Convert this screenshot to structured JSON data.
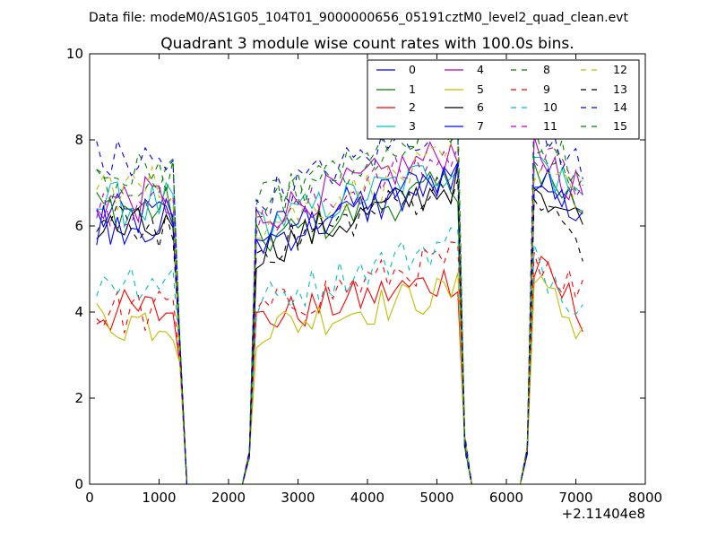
{
  "suptitle": "Data file: modeM0/AS1G05_104T01_9000000656_05191cztM0_level2_quad_clean.evt",
  "chart_data": {
    "type": "line",
    "title": "Quadrant 3 module wise count rates with 100.0s bins.",
    "xlabel": "",
    "ylabel": "",
    "xlim": [
      0,
      8000
    ],
    "ylim": [
      0,
      10
    ],
    "x_offset_label": "+2.11404e8",
    "x_ticks": [
      0,
      1000,
      2000,
      3000,
      4000,
      5000,
      6000,
      7000,
      8000
    ],
    "y_ticks": [
      0,
      2,
      4,
      6,
      8,
      10
    ],
    "x_tick_labels": [
      "0",
      "1000",
      "2000",
      "3000",
      "4000",
      "5000",
      "6000",
      "7000",
      "8000"
    ],
    "y_tick_labels": [
      "0",
      "2",
      "4",
      "6",
      "8",
      "10"
    ],
    "grid": false,
    "legend_position": "top-right",
    "legend_columns": 4,
    "x": [
      100,
      200,
      300,
      400,
      500,
      600,
      700,
      800,
      900,
      1000,
      1100,
      1200,
      1300,
      1400,
      1500,
      1600,
      1700,
      1800,
      1900,
      2000,
      2100,
      2200,
      2300,
      2400,
      2500,
      2600,
      2700,
      2800,
      2900,
      3000,
      3100,
      3200,
      3300,
      3400,
      3500,
      3600,
      3700,
      3800,
      3900,
      4000,
      4100,
      4200,
      4300,
      4400,
      4500,
      4600,
      4700,
      4800,
      4900,
      5000,
      5100,
      5200,
      5300,
      5400,
      5500,
      5600,
      5700,
      5800,
      5900,
      6000,
      6100,
      6200,
      6300,
      6400,
      6500,
      6600,
      6700,
      6800,
      6900,
      7000,
      7100
    ],
    "series": [
      {
        "name": "0",
        "color": "#0000ff",
        "dash": "solid"
      },
      {
        "name": "1",
        "color": "#008000",
        "dash": "solid"
      },
      {
        "name": "2",
        "color": "#ff0000",
        "dash": "solid"
      },
      {
        "name": "3",
        "color": "#00bfbf",
        "dash": "solid"
      },
      {
        "name": "4",
        "color": "#bf00bf",
        "dash": "solid"
      },
      {
        "name": "5",
        "color": "#bfbf00",
        "dash": "solid"
      },
      {
        "name": "6",
        "color": "#000000",
        "dash": "solid"
      },
      {
        "name": "7",
        "color": "#0000ff",
        "dash": "solid"
      },
      {
        "name": "8",
        "color": "#008000",
        "dash": "dashed"
      },
      {
        "name": "9",
        "color": "#ff0000",
        "dash": "dashed"
      },
      {
        "name": "10",
        "color": "#00bfbf",
        "dash": "dashed"
      },
      {
        "name": "11",
        "color": "#bf00bf",
        "dash": "dashed"
      },
      {
        "name": "12",
        "color": "#bfbf00",
        "dash": "dashed"
      },
      {
        "name": "13",
        "color": "#000000",
        "dash": "dashed"
      },
      {
        "name": "14",
        "color": "#0000ff",
        "dash": "dashed"
      },
      {
        "name": "15",
        "color": "#008000",
        "dash": "dashed"
      }
    ]
  }
}
